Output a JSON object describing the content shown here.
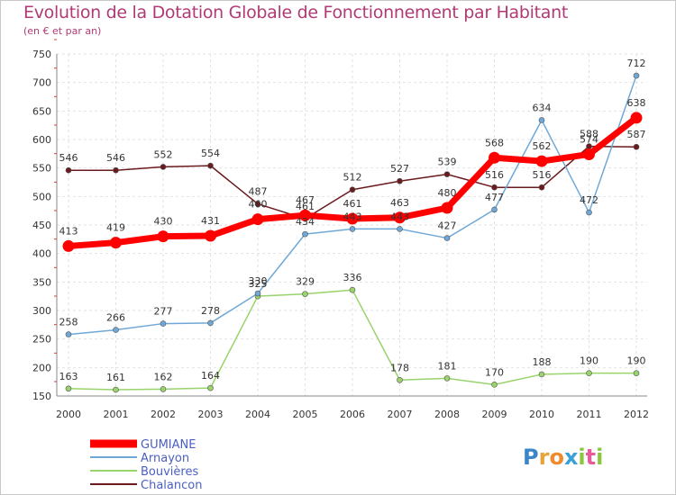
{
  "chart_data": {
    "type": "line",
    "title": "Evolution de la Dotation Globale de Fonctionnement par Habitant",
    "subtitle": "(en € et par an)",
    "xlabel": "",
    "ylabel": "",
    "ylim": [
      150,
      750
    ],
    "yticks": [
      150,
      200,
      250,
      300,
      350,
      400,
      450,
      500,
      550,
      600,
      650,
      700,
      750
    ],
    "categories": [
      "2000",
      "2001",
      "2002",
      "2003",
      "2004",
      "2005",
      "2006",
      "2007",
      "2008",
      "2009",
      "2010",
      "2011",
      "2012"
    ],
    "grid": true,
    "legend_position": "bottom-left",
    "series": [
      {
        "name": "Chalancon",
        "color": "#6b1a1e",
        "values": [
          546,
          546,
          552,
          554,
          487,
          461,
          512,
          527,
          539,
          516,
          516,
          588,
          587
        ]
      },
      {
        "name": "Bouvières",
        "color": "#99d36b",
        "values": [
          163,
          161,
          162,
          164,
          325,
          329,
          336,
          178,
          181,
          170,
          188,
          190,
          190
        ]
      },
      {
        "name": "Arnayon",
        "color": "#6fa8d6",
        "values": [
          258,
          266,
          277,
          278,
          330,
          434,
          443,
          443,
          427,
          477,
          634,
          472,
          712
        ]
      },
      {
        "name": "GUMIANE",
        "color": "#ff0000",
        "values": [
          413,
          419,
          430,
          431,
          460,
          467,
          461,
          463,
          480,
          568,
          562,
          574,
          638
        ]
      }
    ],
    "legend_order": [
      "GUMIANE",
      "Arnayon",
      "Bouvières",
      "Chalancon"
    ]
  },
  "logo": {
    "letters": [
      "P",
      "r",
      "o",
      "x",
      "i",
      "t",
      "i"
    ],
    "colors": [
      "#3a86c8",
      "#e8a23a",
      "#f08a2a",
      "#3aa0d8",
      "#8cc63f",
      "#e85a9a",
      "#8cc63f"
    ]
  }
}
